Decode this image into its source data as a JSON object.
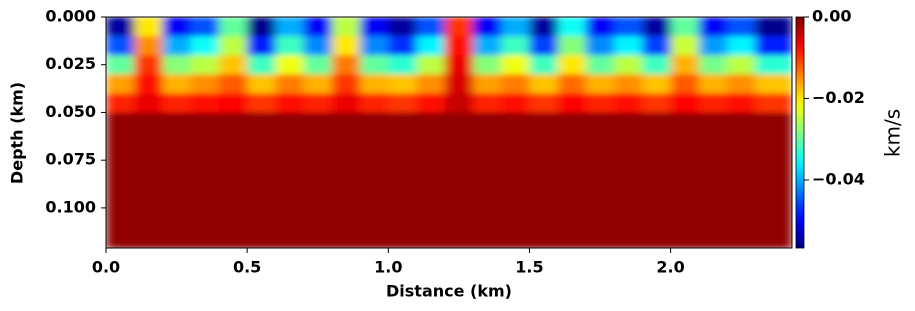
{
  "chart_data": {
    "type": "heatmap",
    "xlabel": "Distance (km)",
    "ylabel": "Depth (km)",
    "colorbar_label": "km/s",
    "colormap": "jet",
    "xlim": [
      0,
      2.43
    ],
    "ylim": [
      0.121,
      0
    ],
    "xticks": [
      {
        "value": 0,
        "label": "0.0"
      },
      {
        "value": 0.5,
        "label": "0.5"
      },
      {
        "value": 1,
        "label": "1.0"
      },
      {
        "value": 1.5,
        "label": "1.5"
      },
      {
        "value": 2,
        "label": "2.0"
      }
    ],
    "yticks": [
      {
        "value": 0,
        "label": "0.000"
      },
      {
        "value": 0.025,
        "label": "0.025"
      },
      {
        "value": 0.05,
        "label": "0.050"
      },
      {
        "value": 0.075,
        "label": "0.075"
      },
      {
        "value": 0.1,
        "label": "0.100"
      }
    ],
    "clim": [
      -0.0567,
      0
    ],
    "cticks": [
      {
        "value": 0,
        "label": "0.00"
      },
      {
        "value": -0.02,
        "label": "−0.02"
      },
      {
        "value": -0.04,
        "label": "−0.04"
      }
    ],
    "xbins": [
      0,
      0.1,
      0.2,
      0.3,
      0.4,
      0.5,
      0.6,
      0.7,
      0.8,
      0.9,
      1,
      1.1,
      1.2,
      1.3,
      1.4,
      1.5,
      1.6,
      1.7,
      1.8,
      1.9,
      2,
      2.1,
      2.2,
      2.3,
      2.43
    ],
    "ybins": [
      0,
      0.01,
      0.02,
      0.03,
      0.04,
      0.05,
      0.121
    ],
    "z": [
      [
        -0.055,
        -0.02,
        -0.05,
        -0.045,
        -0.03,
        -0.056,
        -0.04,
        -0.05,
        -0.025,
        -0.05,
        -0.055,
        -0.045,
        -0.01,
        -0.05,
        -0.04,
        -0.055,
        -0.035,
        -0.05,
        -0.045,
        -0.055,
        -0.03,
        -0.05,
        -0.045,
        -0.056
      ],
      [
        -0.045,
        -0.015,
        -0.04,
        -0.035,
        -0.025,
        -0.048,
        -0.032,
        -0.042,
        -0.02,
        -0.042,
        -0.047,
        -0.036,
        -0.008,
        -0.04,
        -0.032,
        -0.046,
        -0.028,
        -0.042,
        -0.036,
        -0.046,
        -0.024,
        -0.041,
        -0.036,
        -0.048
      ],
      [
        -0.03,
        -0.01,
        -0.028,
        -0.025,
        -0.018,
        -0.032,
        -0.022,
        -0.03,
        -0.014,
        -0.03,
        -0.033,
        -0.025,
        -0.006,
        -0.028,
        -0.022,
        -0.032,
        -0.02,
        -0.03,
        -0.025,
        -0.032,
        -0.017,
        -0.029,
        -0.025,
        -0.033
      ],
      [
        -0.016,
        -0.008,
        -0.017,
        -0.015,
        -0.012,
        -0.018,
        -0.014,
        -0.017,
        -0.01,
        -0.017,
        -0.018,
        -0.015,
        -0.005,
        -0.016,
        -0.014,
        -0.018,
        -0.013,
        -0.017,
        -0.015,
        -0.018,
        -0.012,
        -0.017,
        -0.015,
        -0.018
      ],
      [
        -0.009,
        -0.006,
        -0.009,
        -0.008,
        -0.007,
        -0.01,
        -0.008,
        -0.009,
        -0.006,
        -0.009,
        -0.01,
        -0.008,
        -0.004,
        -0.009,
        -0.008,
        -0.01,
        -0.007,
        -0.009,
        -0.008,
        -0.01,
        -0.007,
        -0.009,
        -0.008,
        -0.01
      ],
      [
        -0.001,
        -0.001,
        -0.001,
        -0.001,
        -0.001,
        -0.001,
        -0.001,
        -0.001,
        -0.001,
        -0.001,
        -0.001,
        -0.001,
        -0.001,
        -0.001,
        -0.001,
        -0.001,
        -0.001,
        -0.001,
        -0.001,
        -0.001,
        -0.001,
        -0.001,
        -0.001,
        -0.001
      ]
    ]
  }
}
